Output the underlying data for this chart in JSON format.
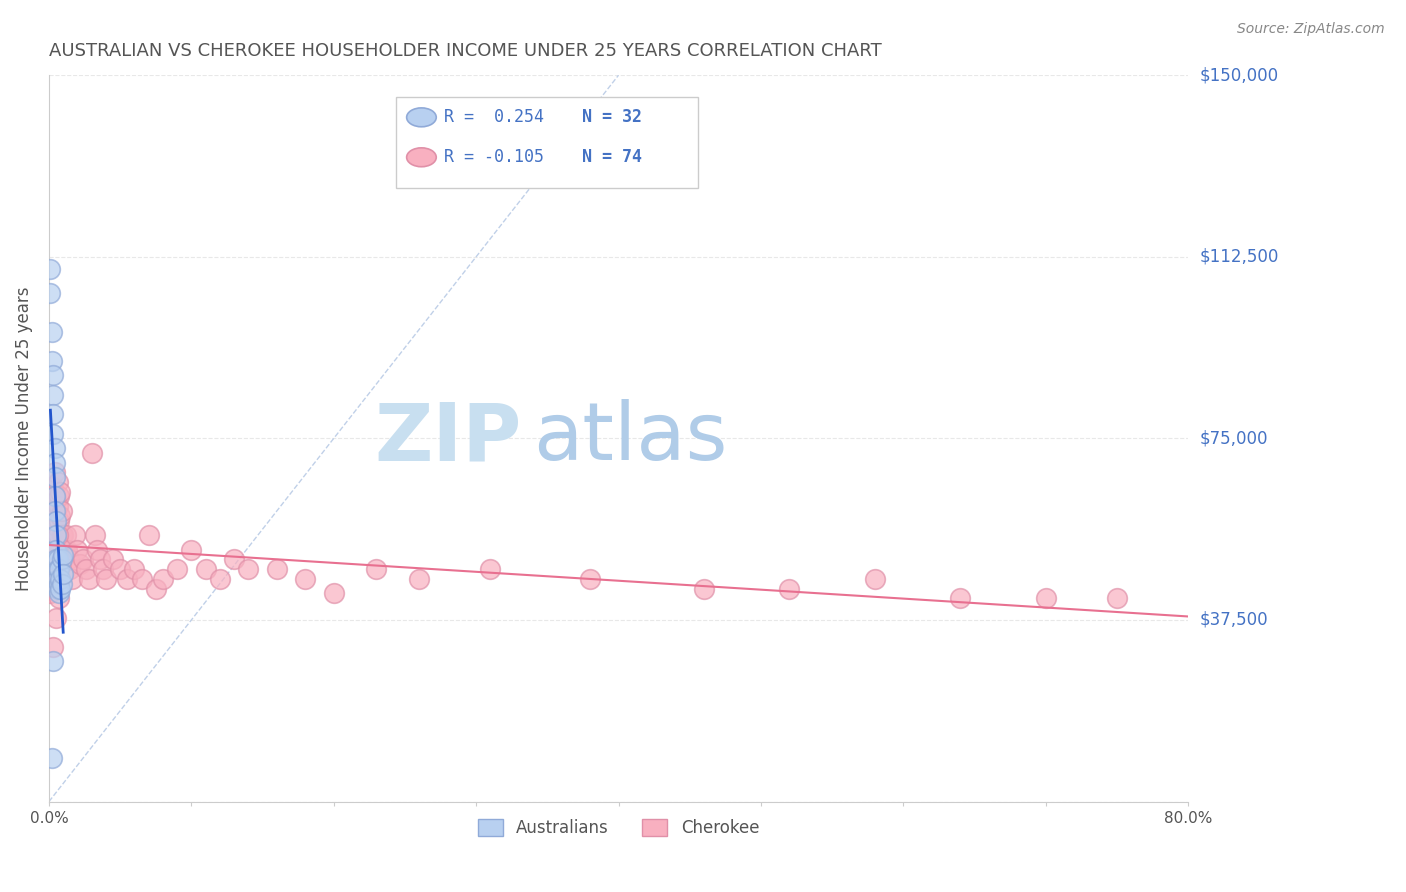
{
  "title": "AUSTRALIAN VS CHEROKEE HOUSEHOLDER INCOME UNDER 25 YEARS CORRELATION CHART",
  "source": "Source: ZipAtlas.com",
  "ylabel": "Householder Income Under 25 years",
  "xlim": [
    0.0,
    0.8
  ],
  "ylim": [
    0,
    150000
  ],
  "yticks": [
    0,
    37500,
    75000,
    112500,
    150000
  ],
  "ytick_labels": [
    "",
    "$37,500",
    "$75,000",
    "$112,500",
    "$150,000"
  ],
  "xticks": [
    0.0,
    0.1,
    0.2,
    0.3,
    0.4,
    0.5,
    0.6,
    0.7,
    0.8
  ],
  "xtick_labels": [
    "0.0%",
    "",
    "",
    "",
    "",
    "",
    "",
    "",
    "80.0%"
  ],
  "watermark_zip": "ZIP",
  "watermark_atlas": "atlas",
  "watermark_zip_color": "#c8dff0",
  "watermark_atlas_color": "#b0cce8",
  "background_color": "#ffffff",
  "grid_color": "#e8e8e8",
  "axis_color": "#cccccc",
  "title_color": "#555555",
  "right_label_color": "#4472c4",
  "aus_scatter_color": "#b8d0f0",
  "aus_scatter_edge": "#90aad8",
  "che_scatter_color": "#f8b0c0",
  "che_scatter_edge": "#e090a8",
  "aus_line_color": "#2255cc",
  "che_line_color": "#e87090",
  "diag_line_color": "#c0d0e8",
  "legend_border_color": "#cccccc",
  "aus_points_x": [
    0.001,
    0.001,
    0.002,
    0.002,
    0.003,
    0.003,
    0.003,
    0.003,
    0.004,
    0.004,
    0.004,
    0.004,
    0.004,
    0.005,
    0.005,
    0.005,
    0.005,
    0.006,
    0.006,
    0.006,
    0.006,
    0.007,
    0.007,
    0.007,
    0.008,
    0.008,
    0.009,
    0.009,
    0.01,
    0.01,
    0.003,
    0.002
  ],
  "aus_points_y": [
    110000,
    105000,
    97000,
    91000,
    88000,
    84000,
    80000,
    76000,
    73000,
    70000,
    67000,
    63000,
    60000,
    58000,
    55000,
    52000,
    50000,
    50000,
    48000,
    46000,
    44000,
    48000,
    45000,
    43000,
    46000,
    44000,
    50000,
    45000,
    51000,
    47000,
    29000,
    9000
  ],
  "che_points_x": [
    0.001,
    0.001,
    0.001,
    0.002,
    0.002,
    0.002,
    0.003,
    0.003,
    0.003,
    0.004,
    0.004,
    0.005,
    0.005,
    0.005,
    0.006,
    0.006,
    0.007,
    0.007,
    0.008,
    0.008,
    0.009,
    0.009,
    0.01,
    0.01,
    0.011,
    0.012,
    0.013,
    0.014,
    0.015,
    0.016,
    0.018,
    0.02,
    0.022,
    0.024,
    0.026,
    0.028,
    0.03,
    0.032,
    0.034,
    0.036,
    0.038,
    0.04,
    0.045,
    0.05,
    0.055,
    0.06,
    0.065,
    0.07,
    0.075,
    0.08,
    0.09,
    0.1,
    0.11,
    0.12,
    0.13,
    0.14,
    0.16,
    0.18,
    0.2,
    0.23,
    0.26,
    0.31,
    0.38,
    0.46,
    0.52,
    0.58,
    0.64,
    0.7,
    0.75,
    0.006,
    0.004,
    0.007,
    0.005,
    0.003
  ],
  "che_points_y": [
    55000,
    48000,
    43000,
    60000,
    55000,
    50000,
    65000,
    60000,
    55000,
    68000,
    63000,
    62000,
    57000,
    52000,
    66000,
    61000,
    63000,
    58000,
    64000,
    59000,
    60000,
    55000,
    55000,
    50000,
    52000,
    55000,
    52000,
    50000,
    48000,
    46000,
    55000,
    52000,
    49000,
    50000,
    48000,
    46000,
    72000,
    55000,
    52000,
    50000,
    48000,
    46000,
    50000,
    48000,
    46000,
    48000,
    46000,
    55000,
    44000,
    46000,
    48000,
    52000,
    48000,
    46000,
    50000,
    48000,
    48000,
    46000,
    43000,
    48000,
    46000,
    48000,
    46000,
    44000,
    44000,
    46000,
    42000,
    42000,
    42000,
    55000,
    52000,
    42000,
    38000,
    32000
  ]
}
